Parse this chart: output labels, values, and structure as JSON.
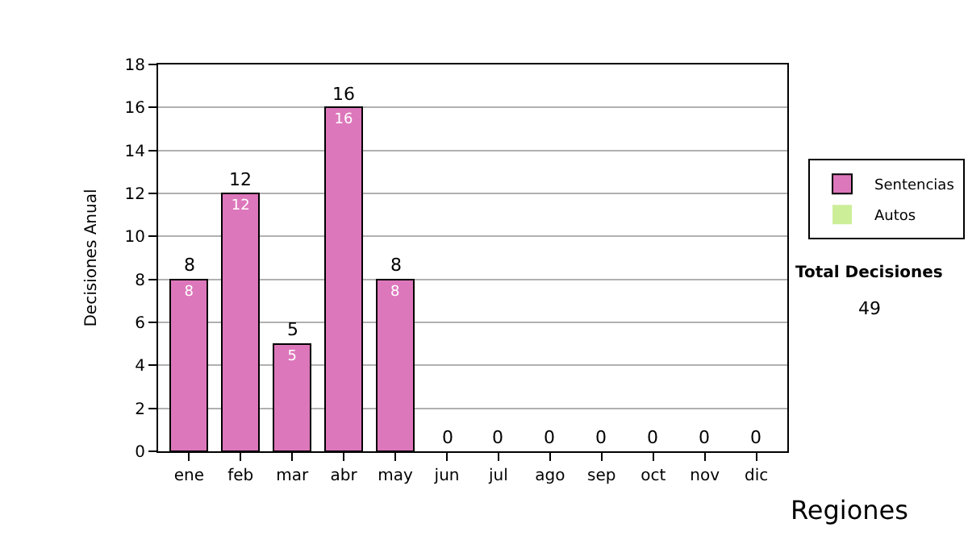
{
  "chart_data": {
    "type": "bar",
    "stacked": true,
    "ylabel": "Decisiones Anual",
    "categories": [
      "ene",
      "feb",
      "mar",
      "abr",
      "may",
      "jun",
      "jul",
      "ago",
      "sep",
      "oct",
      "nov",
      "dic"
    ],
    "series": [
      {
        "name": "Sentencias",
        "color": "#dd77bb",
        "values": [
          8,
          12,
          5,
          16,
          8,
          0,
          0,
          0,
          0,
          0,
          0,
          0
        ],
        "value_labels": [
          "8",
          "12",
          "5",
          "16",
          "8",
          null,
          null,
          null,
          null,
          null,
          null,
          null
        ]
      },
      {
        "name": "Autos",
        "color": "#ccee99",
        "values": [
          0,
          0,
          0,
          0,
          0,
          0,
          0,
          0,
          0,
          0,
          0,
          0
        ]
      }
    ],
    "totals": [
      "8",
      "12",
      "5",
      "16",
      "8",
      "0",
      "0",
      "0",
      "0",
      "0",
      "0",
      "0"
    ],
    "ylim": [
      0,
      18
    ],
    "yticks": [
      0,
      2,
      4,
      6,
      8,
      10,
      12,
      14,
      16,
      18
    ],
    "grid": "y",
    "legend": "right",
    "annotations": [
      "Total Decisiones",
      "49",
      "Regiones"
    ]
  }
}
